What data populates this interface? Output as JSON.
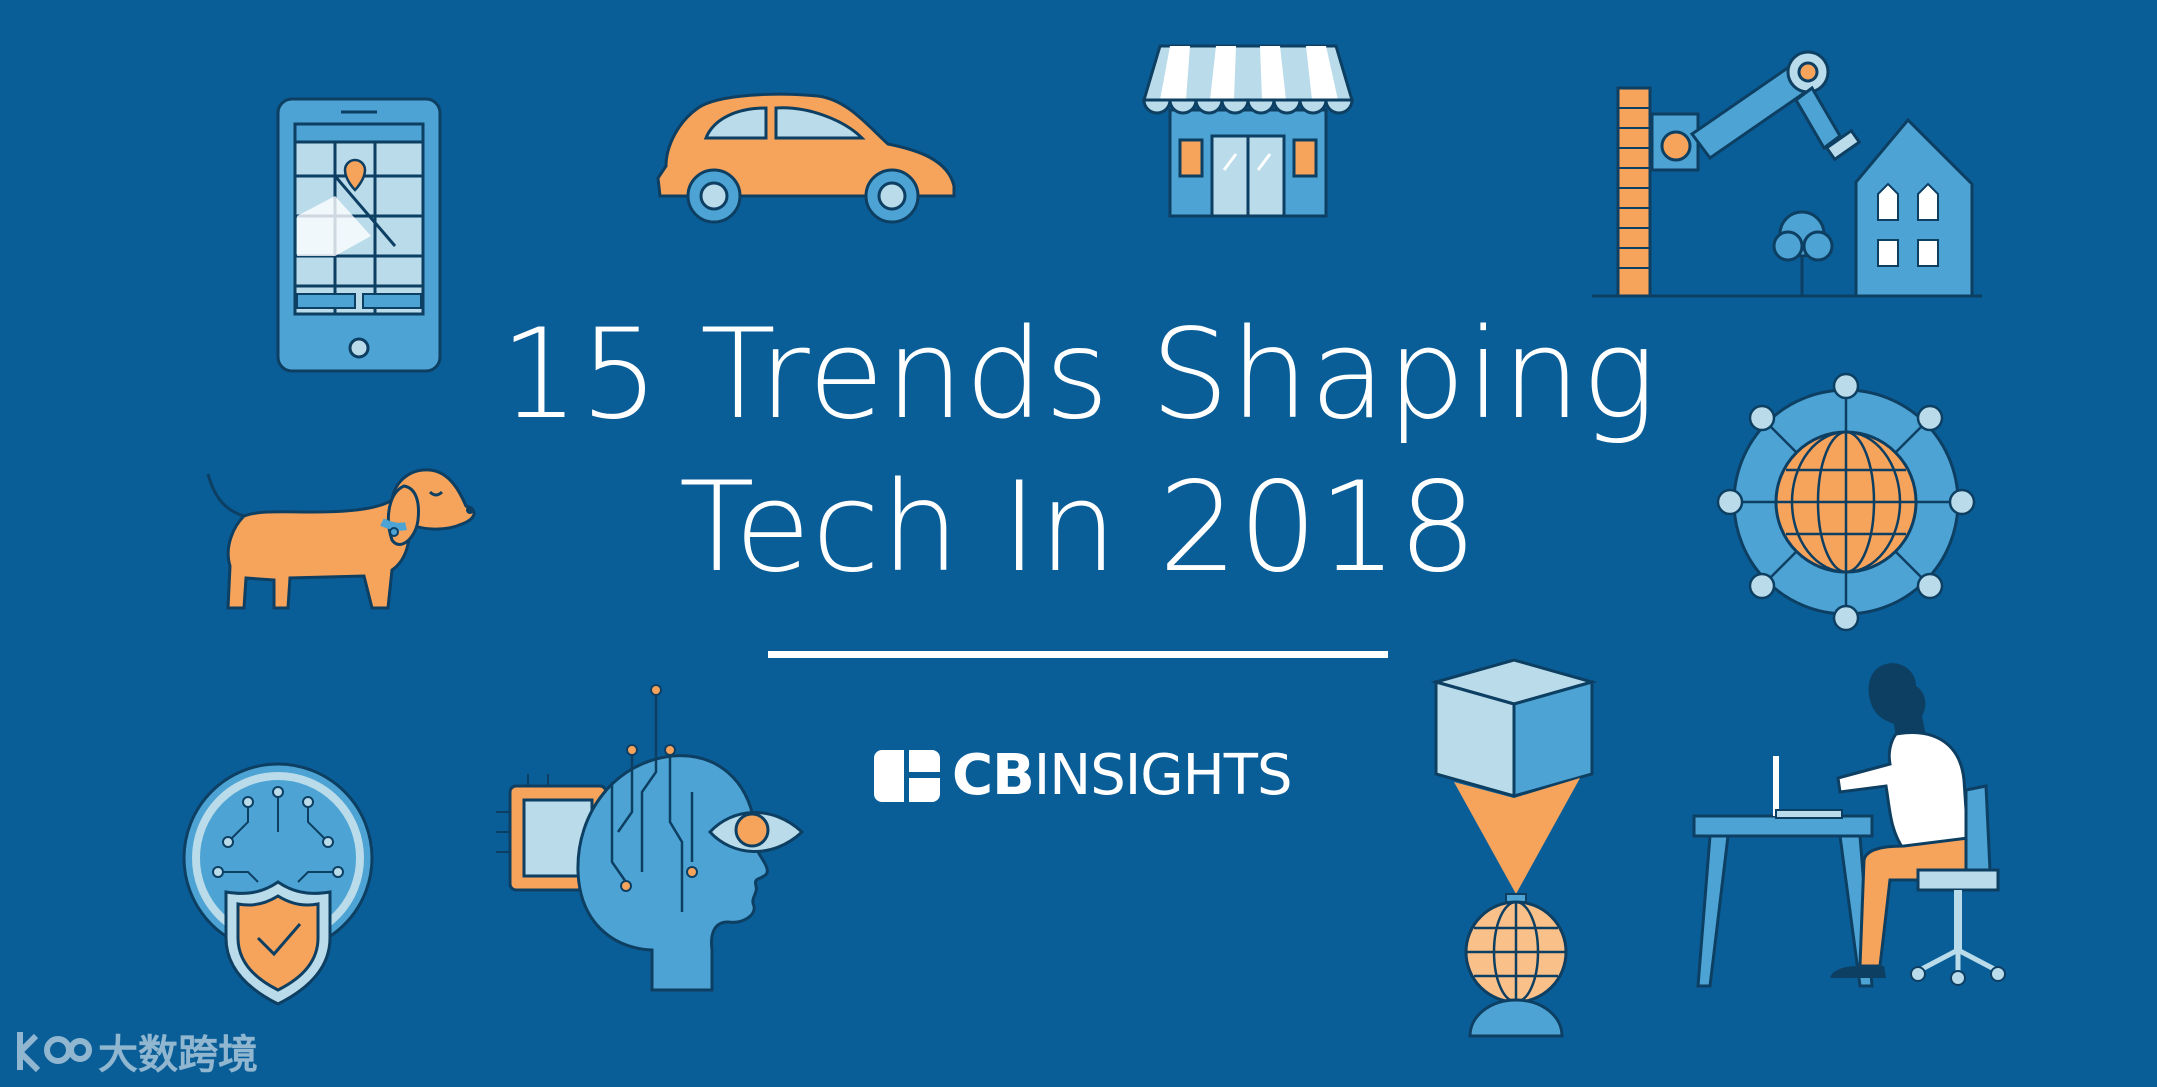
{
  "title": {
    "line1": "15 Trends Shaping",
    "line2": "Tech In 2018"
  },
  "brand": {
    "bold": "CB",
    "regular": "INSIGHTS"
  },
  "watermark": {
    "text": "大数跨境"
  },
  "colors": {
    "background": "#0a5e98",
    "orange": "#f6a35c",
    "light_blue": "#b9dbea",
    "mid_blue": "#4da3d3",
    "white": "#ffffff"
  },
  "illustrations": [
    "phone-map-icon",
    "car-icon",
    "storefront-icon",
    "robot-arm-house-icon",
    "dog-icon",
    "globe-network-icon",
    "security-shield-icon",
    "ai-head-icon",
    "3d-printer-icon",
    "person-at-desk-icon"
  ]
}
